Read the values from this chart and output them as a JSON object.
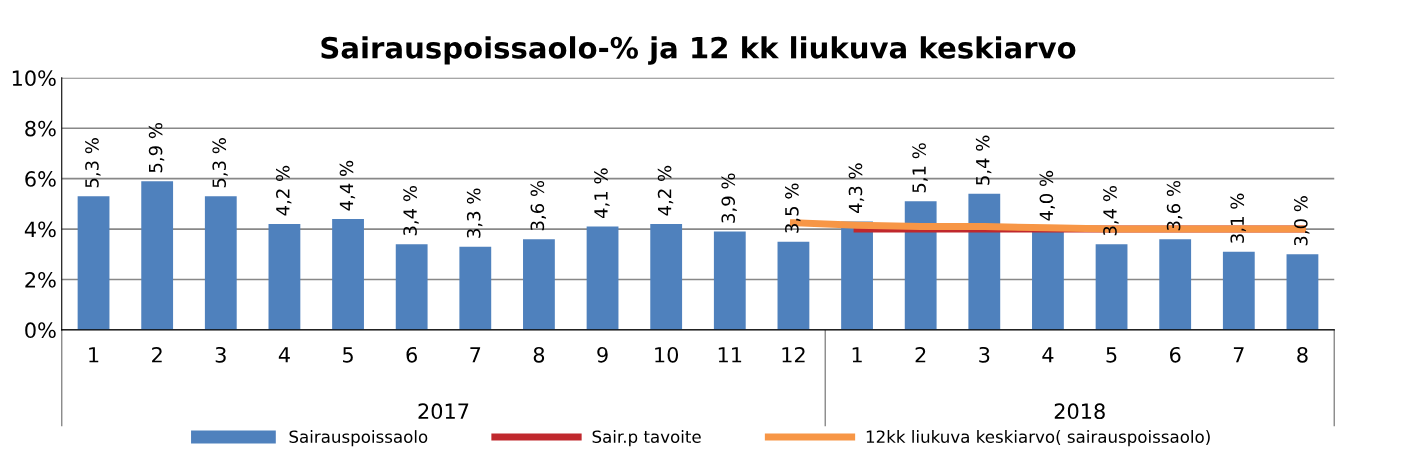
{
  "chart_data": {
    "type": "bar",
    "title": "Sairauspoissaolo-% ja 12 kk liukuva keskiarvo",
    "categories": [
      "1",
      "2",
      "3",
      "4",
      "5",
      "6",
      "7",
      "8",
      "9",
      "10",
      "11",
      "12",
      "1",
      "2",
      "3",
      "4",
      "5",
      "6",
      "7",
      "8"
    ],
    "series": [
      {
        "name": "Sairauspoissaolo",
        "color": "#4f81bd",
        "values": [
          5.3,
          5.9,
          5.3,
          4.2,
          4.4,
          3.4,
          3.3,
          3.6,
          4.1,
          4.2,
          3.9,
          3.5,
          4.3,
          5.1,
          5.4,
          4.0,
          3.4,
          3.6,
          3.1,
          3.0
        ],
        "value_labels": [
          "5,3 %",
          "5,9 %",
          "5,3 %",
          "4,2 %",
          "4,4 %",
          "3,4 %",
          "3,3 %",
          "3,6 %",
          "4,1 %",
          "4,2 %",
          "3,9 %",
          "3,5 %",
          "4,3 %",
          "5,1 %",
          "5,4 %",
          "4,0 %",
          "3,4 %",
          "3,6 %",
          "3,1 %",
          "3,0 %"
        ]
      },
      {
        "name": "Sair.p tavoite",
        "type": "line",
        "color": "#c0282d",
        "values": [
          null,
          null,
          null,
          null,
          null,
          null,
          null,
          null,
          null,
          null,
          null,
          null,
          4.0,
          4.0,
          4.0,
          4.0,
          4.0,
          4.0,
          4.0,
          4.0
        ]
      },
      {
        "name": "12kk liukuva keskiarvo( sairauspoissaolo)",
        "type": "line",
        "color": "#f79646",
        "values": [
          null,
          null,
          null,
          null,
          null,
          null,
          null,
          null,
          null,
          null,
          null,
          4.25,
          4.15,
          4.1,
          4.1,
          4.05,
          4.0,
          4.0,
          4.0,
          4.0
        ]
      }
    ],
    "ylim": [
      0,
      10
    ],
    "yticks": [
      {
        "value": 0,
        "label": "0%"
      },
      {
        "value": 2,
        "label": "2%"
      },
      {
        "value": 4,
        "label": "4%"
      },
      {
        "value": 6,
        "label": "6%"
      },
      {
        "value": 8,
        "label": "8%"
      },
      {
        "value": 10,
        "label": "10%"
      }
    ],
    "grid": "y",
    "legend": "bottom",
    "annotations": [
      "2017",
      "2018"
    ]
  }
}
